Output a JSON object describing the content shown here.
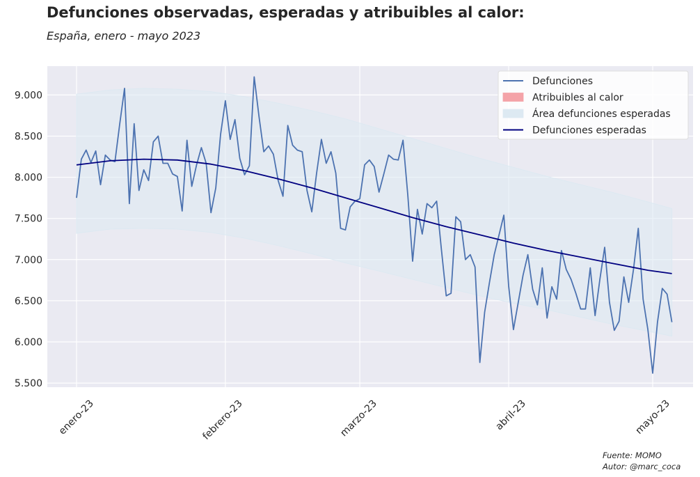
{
  "chart_data": {
    "type": "line",
    "title": "Defunciones observadas, esperadas y atribuibles al calor:",
    "subtitle": "España, enero - mayo 2023",
    "source": "Fuente: MOMO",
    "author": "Autor: @marc_coca",
    "x_start": "2023-01-01",
    "x_end": "2023-05-31",
    "x_ticks": [
      {
        "date": "2023-01-01",
        "label": "enero-23"
      },
      {
        "date": "2023-02-01",
        "label": "febrero-23"
      },
      {
        "date": "2023-03-01",
        "label": "marzo-23"
      },
      {
        "date": "2023-04-01",
        "label": "abril-23"
      },
      {
        "date": "2023-05-01",
        "label": "mayo-23"
      }
    ],
    "ylim": [
      5450,
      9350
    ],
    "y_ticks": [
      {
        "value": 5500,
        "label": "5.500"
      },
      {
        "value": 6000,
        "label": "6.000"
      },
      {
        "value": 6500,
        "label": "6.500"
      },
      {
        "value": 7000,
        "label": "7.000"
      },
      {
        "value": 7500,
        "label": "7.500"
      },
      {
        "value": 8000,
        "label": "8.000"
      },
      {
        "value": 8500,
        "label": "8.500"
      },
      {
        "value": 9000,
        "label": "9.000"
      }
    ],
    "grid": true,
    "legend_position": "top-right",
    "legend": [
      {
        "label": "Defunciones",
        "kind": "line",
        "color": "#4c72b0"
      },
      {
        "label": "Atribuibles al calor",
        "kind": "patch",
        "color": "#f4a3a8"
      },
      {
        "label": "Área defunciones esperadas",
        "kind": "patch",
        "color": "#dde9f2"
      },
      {
        "label": "Defunciones esperadas",
        "kind": "line",
        "color": "#000080"
      }
    ],
    "series": [
      {
        "name": "Defunciones",
        "color": "#4c72b0",
        "dates": [
          "2023-01-01",
          "2023-01-02",
          "2023-01-03",
          "2023-01-04",
          "2023-01-05",
          "2023-01-06",
          "2023-01-07",
          "2023-01-08",
          "2023-01-09",
          "2023-01-10",
          "2023-01-11",
          "2023-01-12",
          "2023-01-13",
          "2023-01-14",
          "2023-01-15",
          "2023-01-16",
          "2023-01-17",
          "2023-01-18",
          "2023-01-19",
          "2023-01-20",
          "2023-01-21",
          "2023-01-22",
          "2023-01-23",
          "2023-01-24",
          "2023-01-25",
          "2023-01-26",
          "2023-01-27",
          "2023-01-28",
          "2023-01-29",
          "2023-01-30",
          "2023-01-31",
          "2023-02-01",
          "2023-02-02",
          "2023-02-03",
          "2023-02-04",
          "2023-02-05",
          "2023-02-06",
          "2023-02-07",
          "2023-02-08",
          "2023-02-09",
          "2023-02-10",
          "2023-02-11",
          "2023-02-12",
          "2023-02-13",
          "2023-02-14",
          "2023-02-15",
          "2023-02-16",
          "2023-02-17",
          "2023-02-18",
          "2023-02-19",
          "2023-02-20",
          "2023-02-21",
          "2023-02-22",
          "2023-02-23",
          "2023-02-24",
          "2023-02-25",
          "2023-02-26",
          "2023-02-27",
          "2023-02-28",
          "2023-03-01",
          "2023-03-02",
          "2023-03-03",
          "2023-03-04",
          "2023-03-05",
          "2023-03-06",
          "2023-03-07",
          "2023-03-08",
          "2023-03-09",
          "2023-03-10",
          "2023-03-11",
          "2023-03-12",
          "2023-03-13",
          "2023-03-14",
          "2023-03-15",
          "2023-03-16",
          "2023-03-17",
          "2023-03-18",
          "2023-03-19",
          "2023-03-20",
          "2023-03-21",
          "2023-03-22",
          "2023-03-23",
          "2023-03-24",
          "2023-03-25",
          "2023-03-26",
          "2023-03-27",
          "2023-03-28",
          "2023-03-29",
          "2023-03-30",
          "2023-03-31",
          "2023-04-01",
          "2023-04-02",
          "2023-04-03",
          "2023-04-04",
          "2023-04-05",
          "2023-04-06",
          "2023-04-07",
          "2023-04-08",
          "2023-04-09",
          "2023-04-10",
          "2023-04-11",
          "2023-04-12",
          "2023-04-13",
          "2023-04-14",
          "2023-04-15",
          "2023-04-16",
          "2023-04-17",
          "2023-04-18",
          "2023-04-19",
          "2023-04-20",
          "2023-04-21",
          "2023-04-22",
          "2023-04-23",
          "2023-04-24",
          "2023-04-25",
          "2023-04-26",
          "2023-04-27",
          "2023-04-28",
          "2023-04-29",
          "2023-04-30",
          "2023-05-01",
          "2023-05-02",
          "2023-05-03",
          "2023-05-04",
          "2023-05-05"
        ],
        "values": [
          7750,
          8220,
          8330,
          8180,
          8320,
          7910,
          8270,
          8210,
          8190,
          8650,
          9080,
          7680,
          8650,
          7840,
          8090,
          7960,
          8430,
          8500,
          8170,
          8170,
          8040,
          8010,
          7590,
          8450,
          7890,
          8150,
          8360,
          8170,
          7570,
          7870,
          8520,
          8930,
          8460,
          8700,
          8230,
          8030,
          8140,
          9220,
          8740,
          8310,
          8380,
          8280,
          7960,
          7770,
          8630,
          8390,
          8330,
          8310,
          7840,
          7580,
          8050,
          8460,
          8170,
          8310,
          8050,
          7380,
          7360,
          7640,
          7710,
          7740,
          8150,
          8210,
          8130,
          7820,
          8040,
          8270,
          8220,
          8210,
          8450,
          7780,
          6980,
          7610,
          7310,
          7680,
          7630,
          7710,
          7120,
          6560,
          6590,
          7520,
          7460,
          7000,
          7060,
          6910,
          5750,
          6360,
          6720,
          7060,
          7300,
          7540,
          6680,
          6150,
          6480,
          6810,
          7060,
          6640,
          6450,
          6900,
          6290,
          6670,
          6520,
          7110,
          6880,
          6760,
          6590,
          6400,
          6400,
          6900,
          6320,
          6760,
          7150,
          6480,
          6140,
          6250,
          6790,
          6480,
          6880,
          7380,
          6520,
          6150,
          5620,
          6240,
          6650,
          6580,
          6240
        ]
      },
      {
        "name": "Defunciones esperadas",
        "color": "#000080",
        "dates": [
          "2023-01-01",
          "2023-01-08",
          "2023-01-15",
          "2023-01-22",
          "2023-01-29",
          "2023-02-05",
          "2023-02-12",
          "2023-02-19",
          "2023-02-26",
          "2023-03-05",
          "2023-03-12",
          "2023-03-19",
          "2023-03-26",
          "2023-04-02",
          "2023-04-09",
          "2023-04-16",
          "2023-04-23",
          "2023-04-30",
          "2023-05-05"
        ],
        "values": [
          8150,
          8200,
          8220,
          8210,
          8160,
          8080,
          7980,
          7870,
          7750,
          7630,
          7510,
          7400,
          7300,
          7200,
          7110,
          7030,
          6950,
          6870,
          6830
        ]
      }
    ],
    "band": {
      "name": "Área defunciones esperadas",
      "color": "#dde9f2",
      "dates": [
        "2023-01-01",
        "2023-01-08",
        "2023-01-15",
        "2023-01-22",
        "2023-01-29",
        "2023-02-05",
        "2023-02-12",
        "2023-02-19",
        "2023-02-26",
        "2023-03-05",
        "2023-03-12",
        "2023-03-19",
        "2023-03-26",
        "2023-04-02",
        "2023-04-09",
        "2023-04-16",
        "2023-04-23",
        "2023-04-30",
        "2023-05-05"
      ],
      "upper": [
        9010,
        9060,
        9080,
        9070,
        9040,
        8980,
        8900,
        8810,
        8710,
        8590,
        8470,
        8350,
        8230,
        8120,
        8010,
        7910,
        7810,
        7700,
        7620
      ],
      "lower": [
        7320,
        7370,
        7380,
        7370,
        7330,
        7260,
        7170,
        7070,
        6960,
        6860,
        6760,
        6660,
        6560,
        6470,
        6390,
        6300,
        6210,
        6130,
        6070
      ]
    }
  }
}
